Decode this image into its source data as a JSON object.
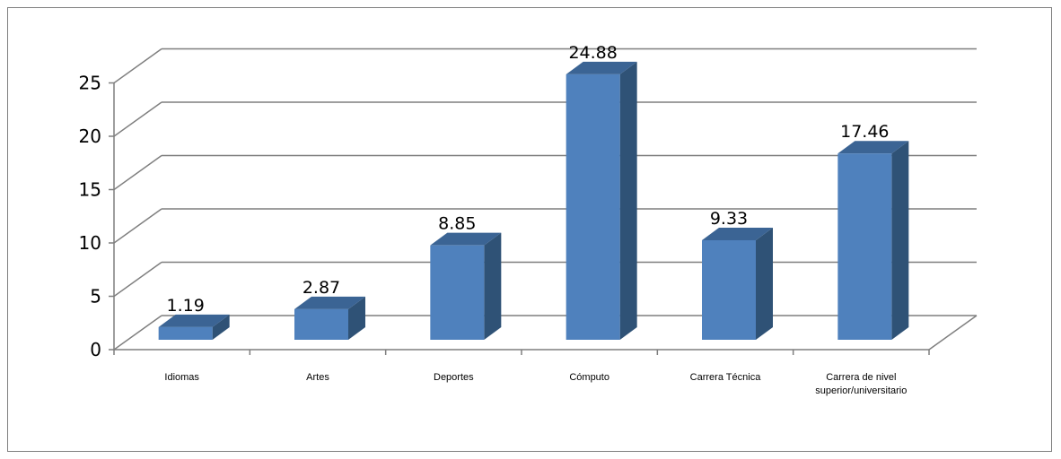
{
  "chart_data": {
    "type": "bar",
    "categories": [
      "Idiomas",
      "Artes",
      "Deportes",
      "Cómputo",
      "Carrera Técnica",
      "Carrera de nivel superior/universitario"
    ],
    "values": [
      1.19,
      2.87,
      8.85,
      24.88,
      9.33,
      17.46
    ],
    "data_labels": [
      "1.19",
      "2.87",
      "8.85",
      "24.88",
      "9.33",
      "17.46"
    ],
    "yticks": [
      "0",
      "5",
      "10",
      "15",
      "20",
      "25"
    ],
    "ylim": [
      0,
      25
    ],
    "grid": true,
    "three_d": true,
    "colors": {
      "front": "#4f81bd",
      "side": "#2f5276",
      "top": "#3b6494",
      "grid": "#7f7f7f"
    }
  }
}
